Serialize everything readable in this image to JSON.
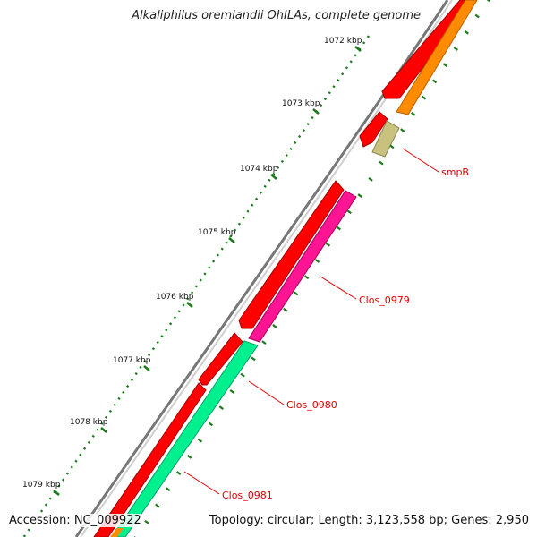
{
  "title": "Alkaliphilus oremlandii OhILAs, complete genome",
  "accession": "Accession: NC_009922",
  "summary": "Topology: circular; Length: 3,123,558 bp; Genes: 2,950",
  "ruler": {
    "labels": [
      "1072 kbp",
      "1073 kbp",
      "1074 kbp",
      "1075 kbp",
      "1076 kbp",
      "1077 kbp",
      "1078 kbp",
      "1079 kbp"
    ]
  },
  "genes": [
    {
      "name": "smpB",
      "color": "#c8c27e",
      "strand": "forward"
    },
    {
      "name": "Clos_0979",
      "color": "#ff1493",
      "strand": "forward"
    },
    {
      "name": "Clos_0980",
      "color": "#00e68a",
      "strand": "forward"
    },
    {
      "name": "Clos_0981",
      "color": "#00e68a",
      "strand": "forward"
    }
  ],
  "colors": {
    "cds_reverse": "#ff0000",
    "orf_forward": "#ff8c00",
    "backbone": "#888888",
    "tick": "#1a7a1a",
    "label": "#dd0000"
  }
}
